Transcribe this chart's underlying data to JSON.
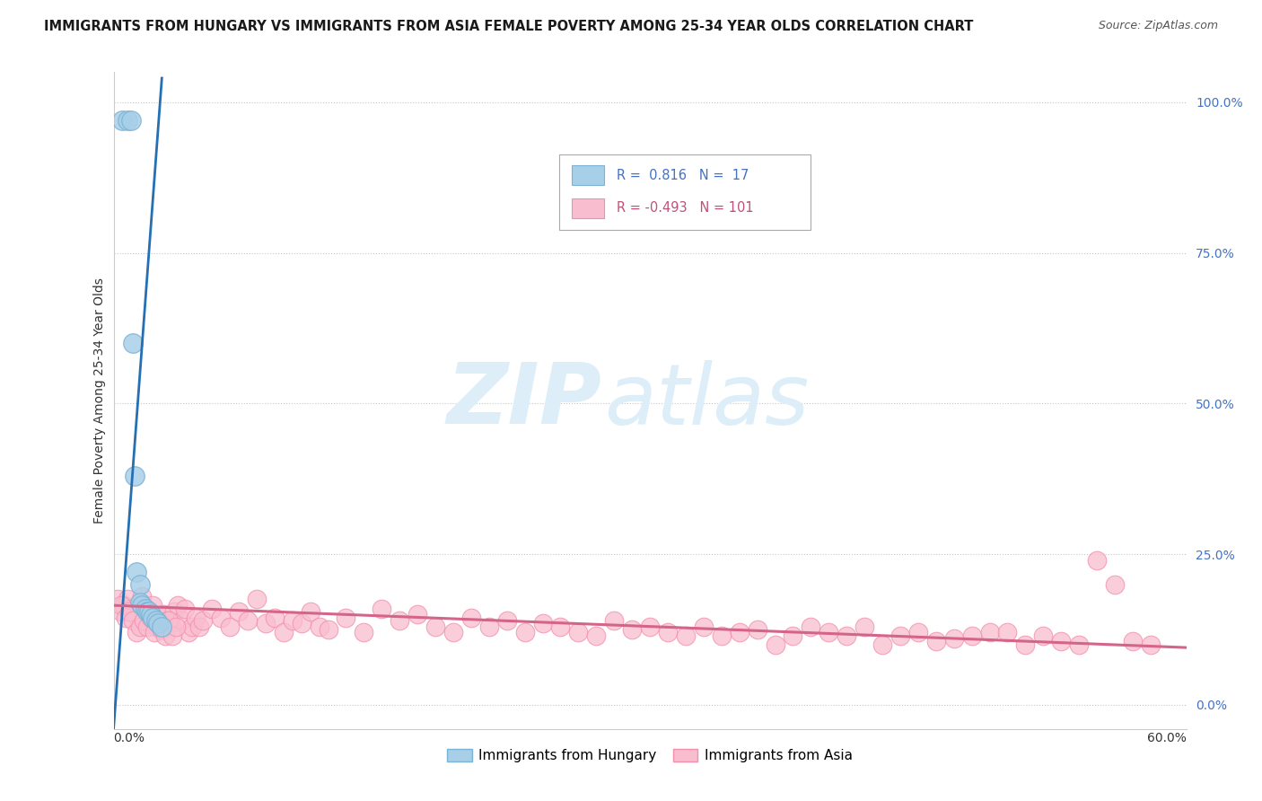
{
  "title": "IMMIGRANTS FROM HUNGARY VS IMMIGRANTS FROM ASIA FEMALE POVERTY AMONG 25-34 YEAR OLDS CORRELATION CHART",
  "source": "Source: ZipAtlas.com",
  "ylabel": "Female Poverty Among 25-34 Year Olds",
  "ytick_labels": [
    "0.0%",
    "25.0%",
    "50.0%",
    "75.0%",
    "100.0%"
  ],
  "ytick_values": [
    0.0,
    0.25,
    0.5,
    0.75,
    1.0
  ],
  "xmin": 0.0,
  "xmax": 0.6,
  "ymin": -0.04,
  "ymax": 1.05,
  "hungary_R": 0.816,
  "hungary_N": 17,
  "asia_R": -0.493,
  "asia_N": 101,
  "hungary_marker_color": "#a8cfe8",
  "hungary_edge_color": "#7ab3d4",
  "asia_marker_color": "#f9bdd0",
  "asia_edge_color": "#f090aa",
  "line_hungary_color": "#2470b3",
  "line_asia_color": "#d4648a",
  "background_color": "#ffffff",
  "grid_color": "#c8c8c8",
  "watermark_zip": "ZIP",
  "watermark_atlas": "atlas",
  "watermark_color": "#ddeef8",
  "legend_label_hungary": "Immigrants from Hungary",
  "legend_label_asia": "Immigrants from Asia",
  "hungary_x": [
    0.005,
    0.008,
    0.01,
    0.011,
    0.012,
    0.013,
    0.015,
    0.015,
    0.016,
    0.018,
    0.019,
    0.02,
    0.021,
    0.022,
    0.024,
    0.025,
    0.027
  ],
  "hungary_y": [
    0.97,
    0.97,
    0.97,
    0.6,
    0.38,
    0.22,
    0.2,
    0.17,
    0.165,
    0.16,
    0.155,
    0.155,
    0.15,
    0.145,
    0.14,
    0.135,
    0.13
  ],
  "asia_x": [
    0.002,
    0.004,
    0.006,
    0.008,
    0.01,
    0.012,
    0.014,
    0.016,
    0.018,
    0.02,
    0.022,
    0.024,
    0.026,
    0.028,
    0.03,
    0.032,
    0.034,
    0.036,
    0.038,
    0.04,
    0.042,
    0.044,
    0.046,
    0.048,
    0.05,
    0.055,
    0.06,
    0.065,
    0.07,
    0.075,
    0.08,
    0.085,
    0.09,
    0.095,
    0.1,
    0.105,
    0.11,
    0.115,
    0.12,
    0.13,
    0.14,
    0.15,
    0.16,
    0.17,
    0.18,
    0.19,
    0.2,
    0.21,
    0.22,
    0.23,
    0.24,
    0.25,
    0.26,
    0.27,
    0.28,
    0.29,
    0.3,
    0.31,
    0.32,
    0.33,
    0.34,
    0.35,
    0.36,
    0.37,
    0.38,
    0.39,
    0.4,
    0.41,
    0.42,
    0.43,
    0.44,
    0.45,
    0.46,
    0.47,
    0.48,
    0.49,
    0.5,
    0.51,
    0.52,
    0.53,
    0.54,
    0.55,
    0.56,
    0.57,
    0.004,
    0.007,
    0.009,
    0.011,
    0.013,
    0.015,
    0.017,
    0.019,
    0.021,
    0.023,
    0.025,
    0.027,
    0.029,
    0.031,
    0.033,
    0.035,
    0.58
  ],
  "asia_y": [
    0.175,
    0.155,
    0.165,
    0.175,
    0.16,
    0.15,
    0.145,
    0.18,
    0.14,
    0.155,
    0.165,
    0.13,
    0.145,
    0.15,
    0.14,
    0.135,
    0.155,
    0.165,
    0.14,
    0.16,
    0.12,
    0.13,
    0.145,
    0.13,
    0.14,
    0.16,
    0.145,
    0.13,
    0.155,
    0.14,
    0.175,
    0.135,
    0.145,
    0.12,
    0.14,
    0.135,
    0.155,
    0.13,
    0.125,
    0.145,
    0.12,
    0.16,
    0.14,
    0.15,
    0.13,
    0.12,
    0.145,
    0.13,
    0.14,
    0.12,
    0.135,
    0.13,
    0.12,
    0.115,
    0.14,
    0.125,
    0.13,
    0.12,
    0.115,
    0.13,
    0.115,
    0.12,
    0.125,
    0.1,
    0.115,
    0.13,
    0.12,
    0.115,
    0.13,
    0.1,
    0.115,
    0.12,
    0.105,
    0.11,
    0.115,
    0.12,
    0.12,
    0.1,
    0.115,
    0.105,
    0.1,
    0.24,
    0.2,
    0.105,
    0.165,
    0.145,
    0.155,
    0.14,
    0.12,
    0.13,
    0.14,
    0.13,
    0.145,
    0.12,
    0.135,
    0.125,
    0.115,
    0.14,
    0.115,
    0.13,
    0.1
  ],
  "hungary_line_x0": 0.0,
  "hungary_line_y0": -0.04,
  "hungary_line_x1": 0.027,
  "hungary_line_y1": 1.04,
  "asia_line_x0": 0.0,
  "asia_line_y0": 0.165,
  "asia_line_x1": 0.6,
  "asia_line_y1": 0.095,
  "title_fontsize": 10.5,
  "source_fontsize": 9,
  "ylabel_fontsize": 10,
  "tick_fontsize": 10,
  "legend_fontsize": 10.5
}
